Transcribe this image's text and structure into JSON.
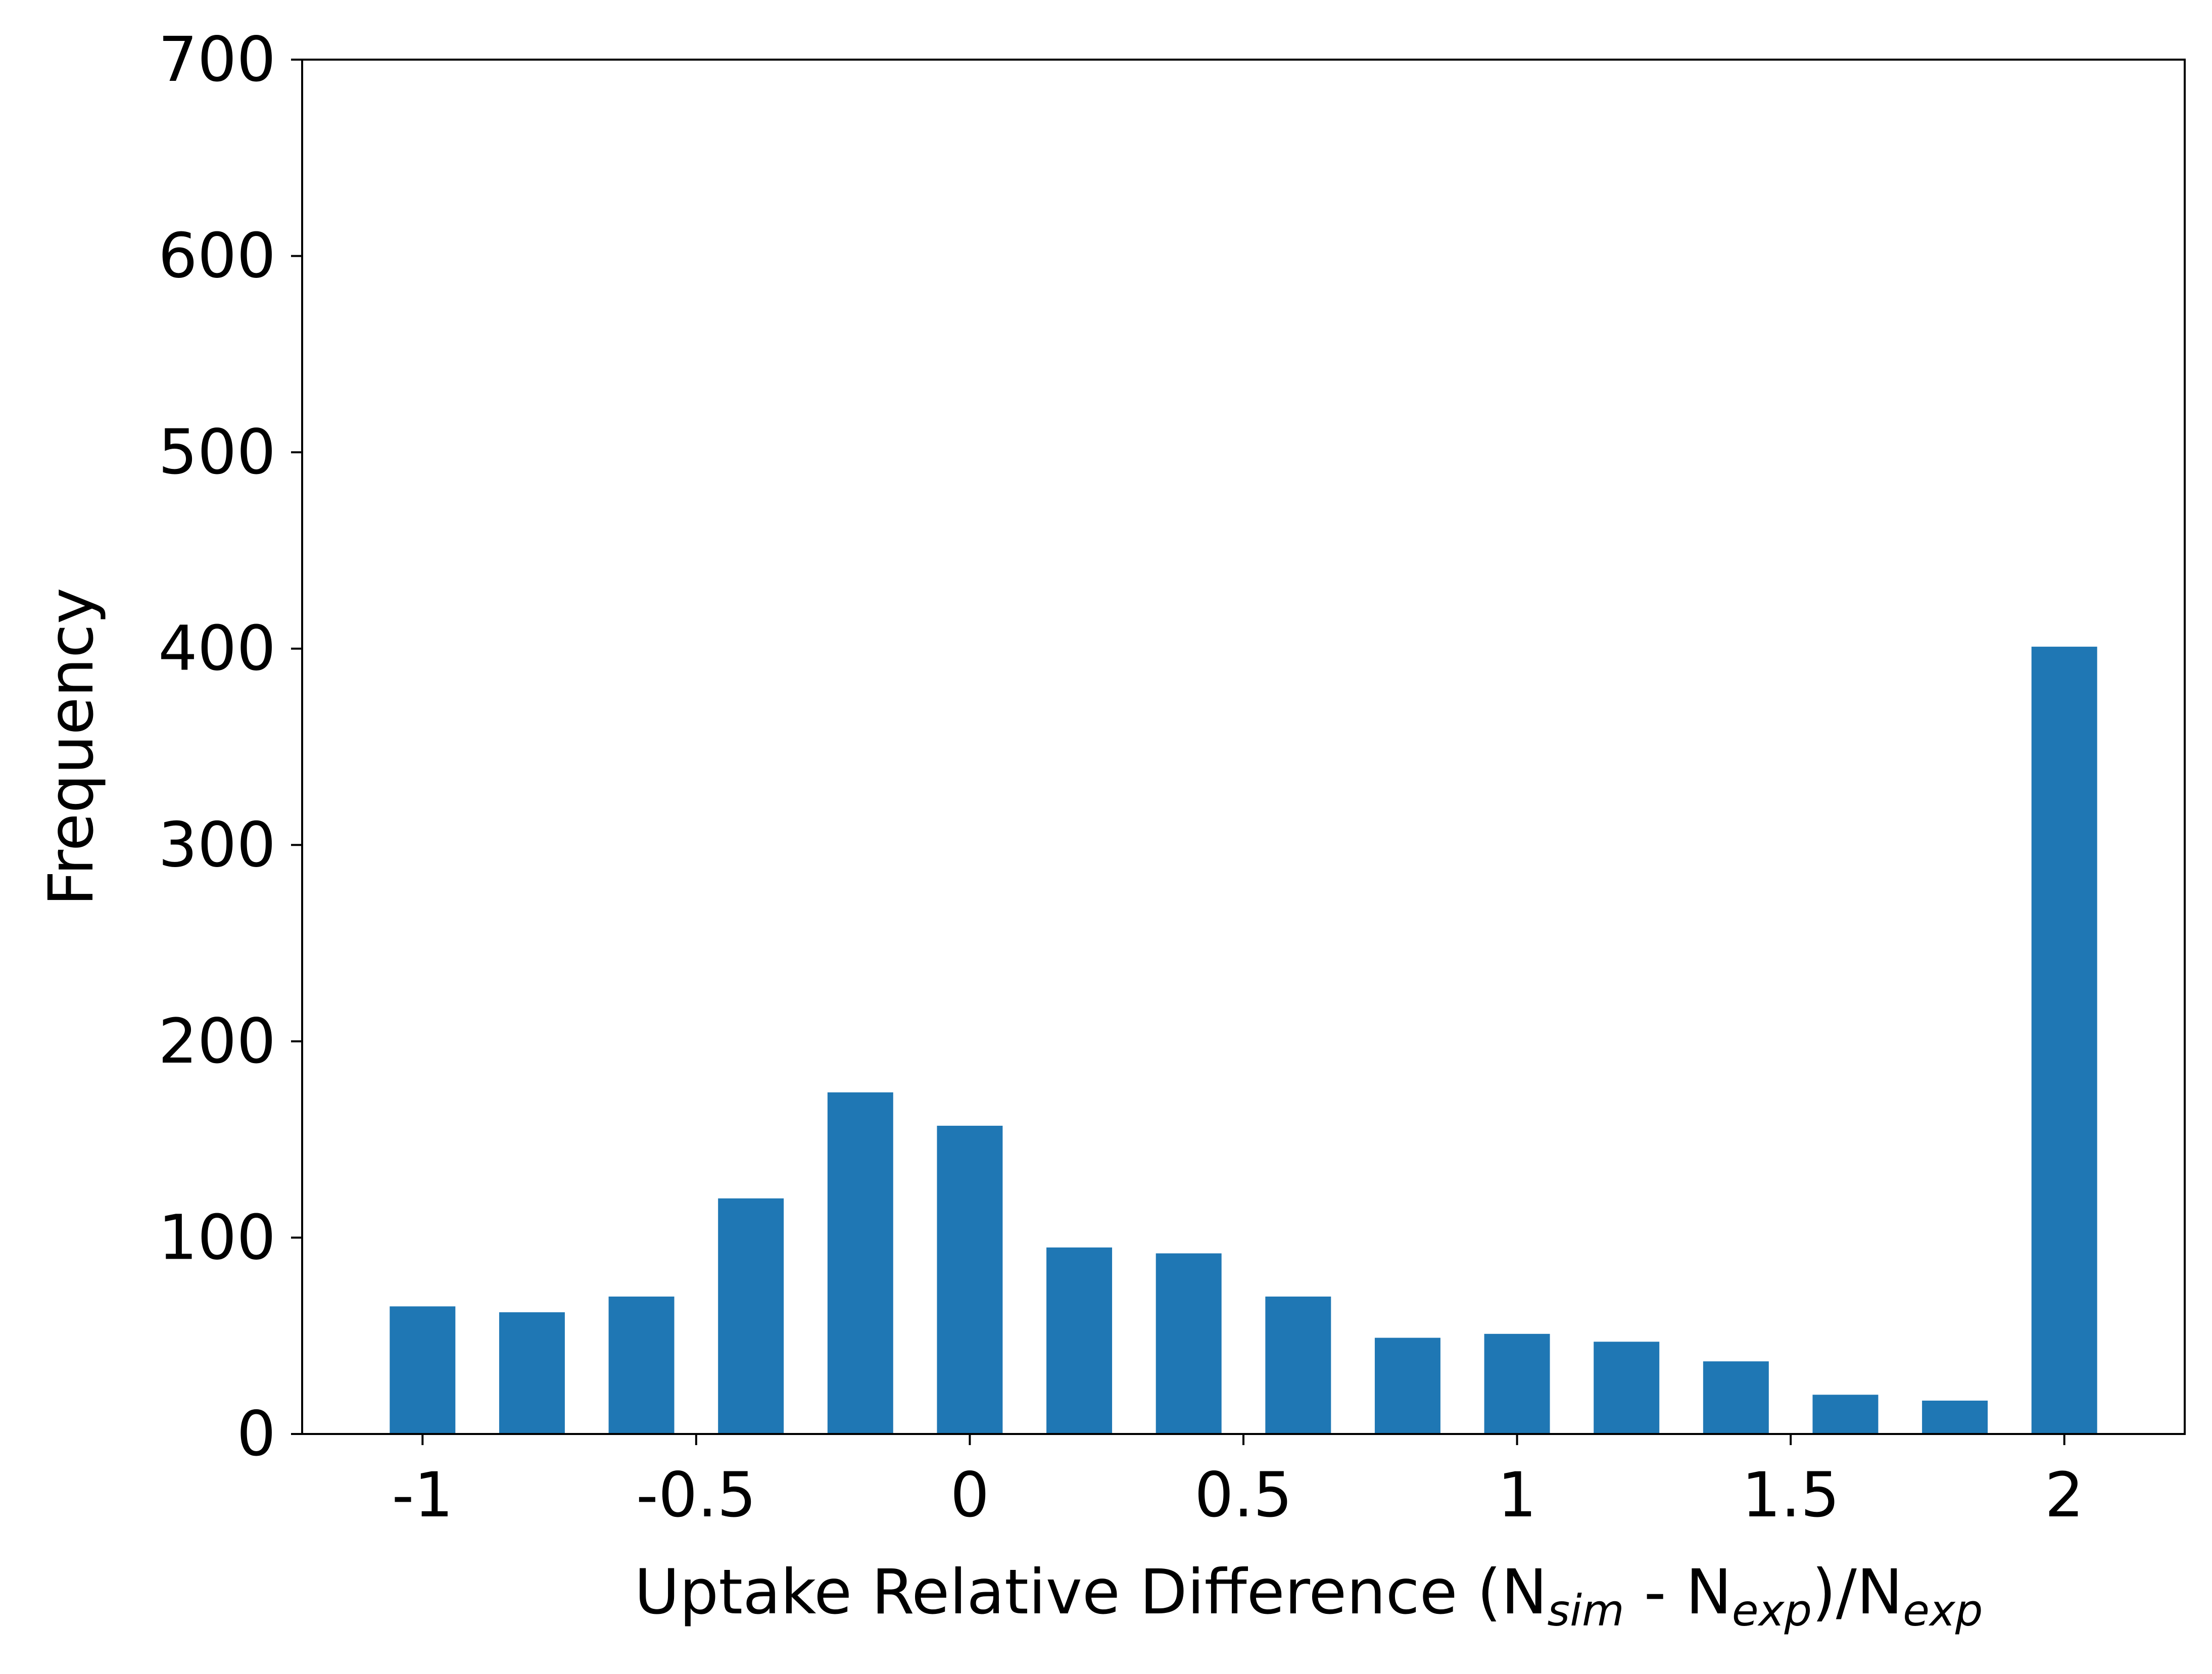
{
  "chart_data": {
    "type": "bar",
    "title": "",
    "xlabel": {
      "main": "Uptake Relative Difference (N",
      "sub1": "sim",
      "mid": " - N",
      "sub2": "exp",
      "after": ")/N",
      "sub3": "exp"
    },
    "ylabel": "Frequency",
    "x": [
      -1.0,
      -0.8,
      -0.6,
      -0.4,
      -0.2,
      0.0,
      0.2,
      0.4,
      0.6,
      0.8,
      1.0,
      1.2,
      1.4,
      1.6,
      1.8,
      2.0
    ],
    "values": [
      65,
      62,
      70,
      120,
      174,
      157,
      95,
      92,
      70,
      49,
      51,
      47,
      37,
      20,
      17,
      401
    ],
    "bar_width": 0.12,
    "xlim": [
      -1.22,
      2.22
    ],
    "ylim": [
      0,
      700
    ],
    "xticks": [
      -1,
      -0.5,
      0,
      0.5,
      1,
      1.5,
      2
    ],
    "xtick_labels": [
      "-1",
      "-0.5",
      "0",
      "0.5",
      "1",
      "1.5",
      "2"
    ],
    "yticks": [
      0,
      100,
      200,
      300,
      400,
      500,
      600,
      700
    ],
    "ytick_labels": [
      "0",
      "100",
      "200",
      "300",
      "400",
      "500",
      "600",
      "700"
    ],
    "grid": false,
    "legend": "none",
    "colors": {
      "bar": "#1f77b4",
      "axis": "#000000"
    }
  }
}
